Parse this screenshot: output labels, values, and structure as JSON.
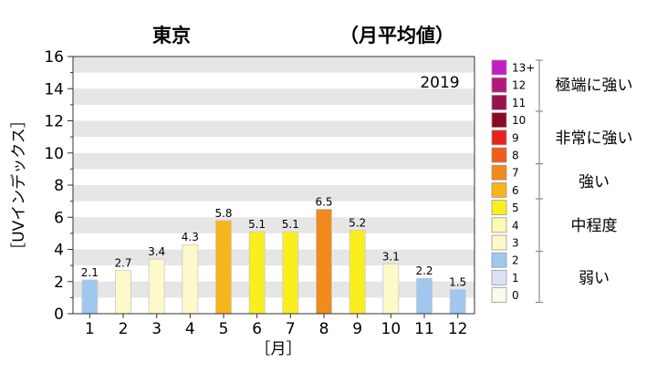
{
  "chart_data": {
    "type": "bar",
    "title": "東京",
    "subtitle": "（月平均値）",
    "annotation": "2019",
    "xlabel": "［月］",
    "ylabel": "［UVインデックス］",
    "ylim": [
      0,
      16
    ],
    "yticks": [
      "0",
      "2",
      "4",
      "6",
      "8",
      "10",
      "12",
      "14",
      "16"
    ],
    "categories": [
      "1",
      "2",
      "3",
      "4",
      "5",
      "6",
      "7",
      "8",
      "9",
      "10",
      "11",
      "12"
    ],
    "values": [
      2.1,
      2.7,
      3.4,
      4.3,
      5.8,
      5.1,
      5.1,
      6.5,
      5.2,
      3.1,
      2.2,
      1.5
    ],
    "data_labels": [
      "2.1",
      "2.7",
      "3.4",
      "4.3",
      "5.8",
      "5.1",
      "5.1",
      "6.5",
      "5.2",
      "3.1",
      "2.2",
      "1.5"
    ],
    "bar_colors": [
      "#9fc7ef",
      "#fdf9c9",
      "#fdf9c9",
      "#fdf9c9",
      "#f7b51c",
      "#fbee1f",
      "#fbee1f",
      "#f08a1c",
      "#fbee1f",
      "#fdf9c9",
      "#9fc7ef",
      "#9fc7ef"
    ],
    "grid": "horizontal alternating bands",
    "legend": {
      "placement": "right",
      "scale": [
        {
          "label": "13+",
          "color": "#c21fc2"
        },
        {
          "label": "12",
          "color": "#b3187b"
        },
        {
          "label": "11",
          "color": "#99114f"
        },
        {
          "label": "10",
          "color": "#8a0a22"
        },
        {
          "label": "9",
          "color": "#e5231b"
        },
        {
          "label": "8",
          "color": "#f05d1a"
        },
        {
          "label": "7",
          "color": "#f08a1c"
        },
        {
          "label": "6",
          "color": "#f7b51c"
        },
        {
          "label": "5",
          "color": "#fbee1f"
        },
        {
          "label": "4",
          "color": "#fdf9b0"
        },
        {
          "label": "3",
          "color": "#fdf9c9"
        },
        {
          "label": "2",
          "color": "#9fc7ef"
        },
        {
          "label": "1",
          "color": "#dbe2f7"
        },
        {
          "label": "0",
          "color": "#f7fbe9"
        }
      ],
      "categories": [
        "極端に強い",
        "非常に強い",
        "強い",
        "中程度",
        "弱い"
      ]
    }
  }
}
